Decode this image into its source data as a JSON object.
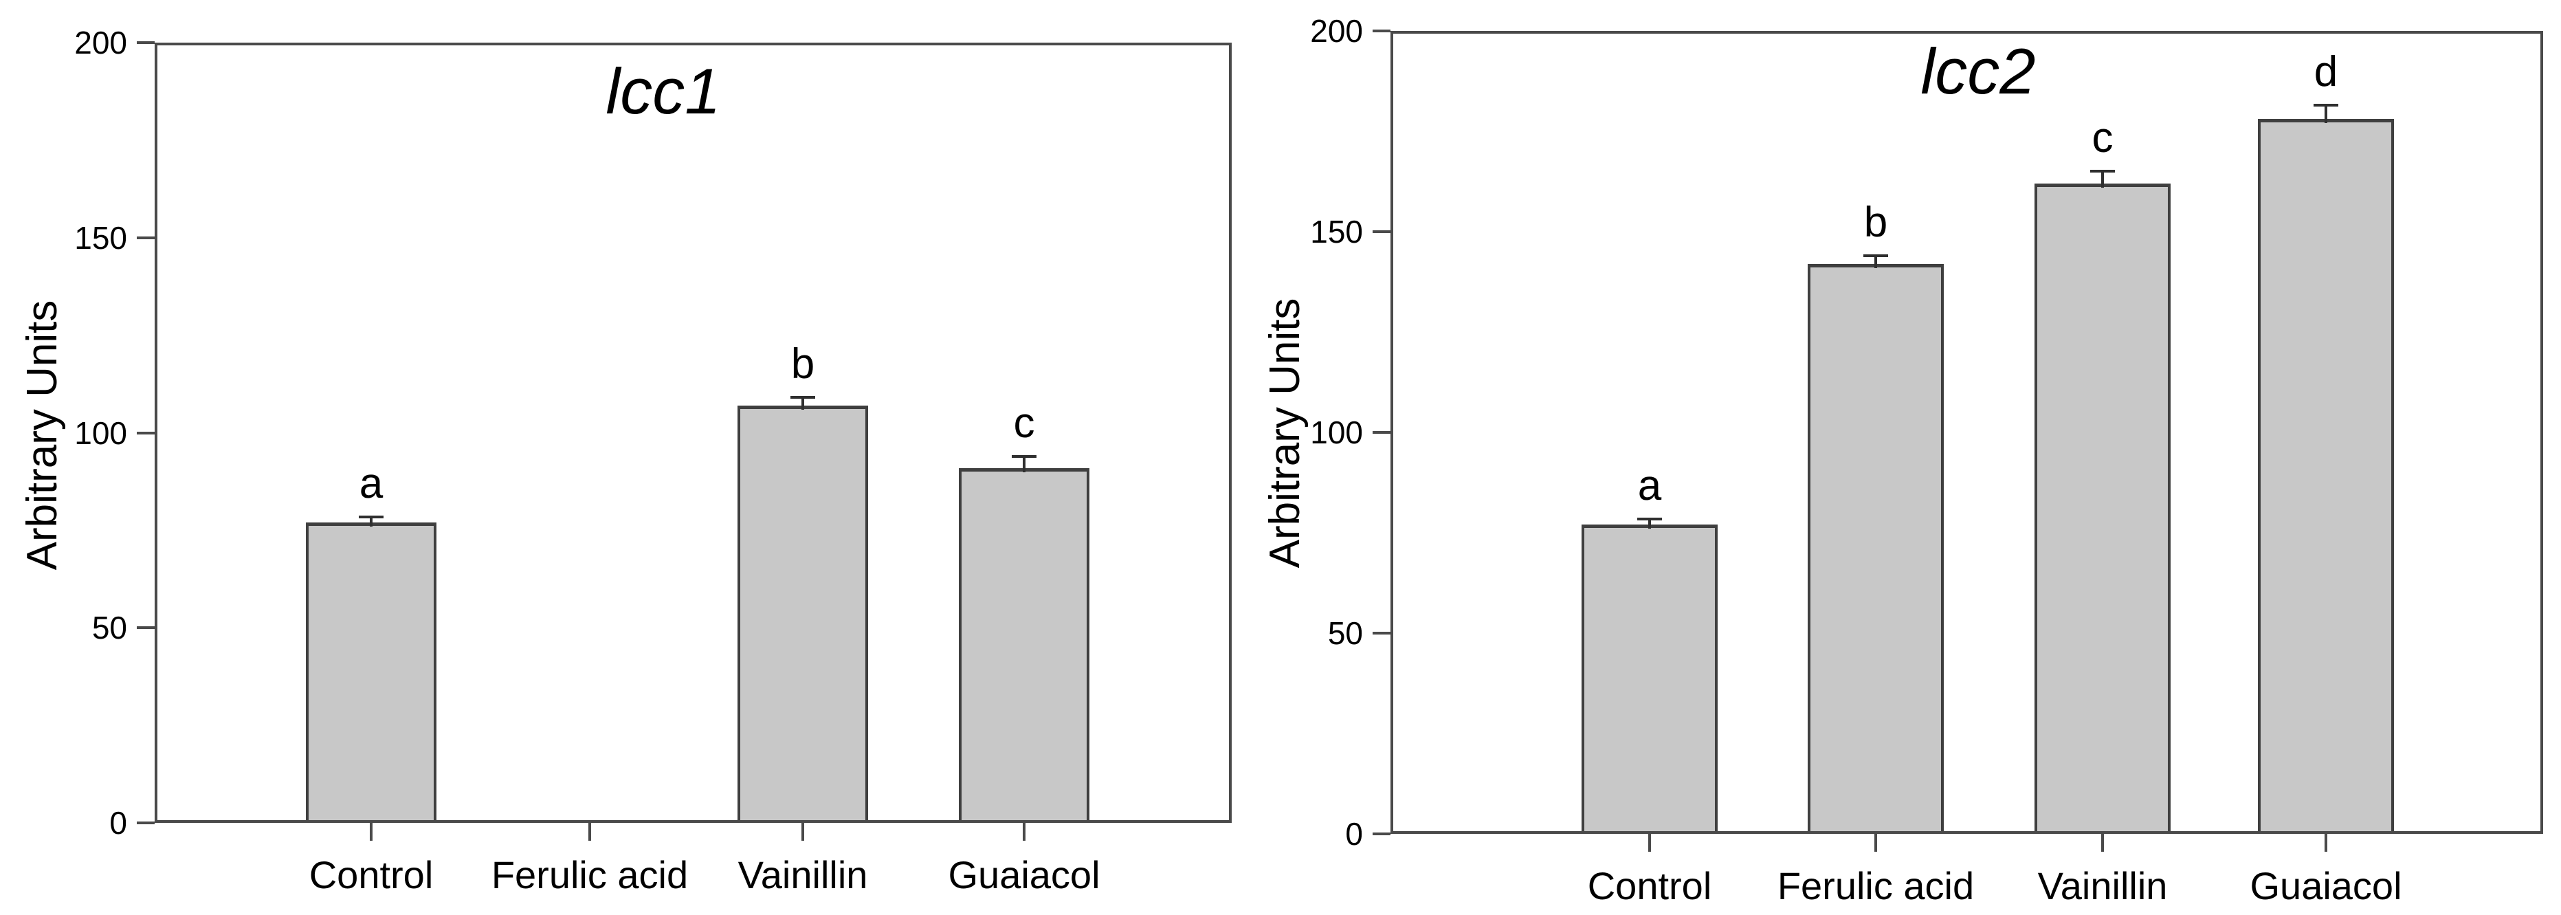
{
  "figure": {
    "background": "#ffffff",
    "text_color": "#000000",
    "axis_color": "#4a4a4a",
    "bar_fill": "#c8c8c8",
    "bar_border": "#3f3f3f",
    "error_color": "#2f2f2f"
  },
  "chart_data": [
    {
      "type": "bar",
      "title": "lcc1",
      "ylabel": "Arbitrary Units",
      "xlabel": "",
      "categories": [
        "Control",
        "Ferulic acid",
        "Vainillin",
        "Guaiacol"
      ],
      "values": [
        77,
        0,
        107,
        91
      ],
      "errors": [
        1.5,
        0,
        2,
        3
      ],
      "sig_letters": [
        "a",
        "",
        "b",
        "c"
      ],
      "yticks": [
        0,
        50,
        100,
        150,
        200
      ],
      "ylim": [
        0,
        200
      ],
      "grid": false,
      "legend": "none"
    },
    {
      "type": "bar",
      "title": "lcc2",
      "ylabel": "Arbitrary Units",
      "xlabel": "",
      "categories": [
        "Control",
        "Ferulic acid",
        "Vainillin",
        "Guaiacol"
      ],
      "values": [
        77,
        142,
        162,
        178
      ],
      "errors": [
        1.5,
        2,
        3,
        3.5
      ],
      "sig_letters": [
        "a",
        "b",
        "c",
        "d"
      ],
      "yticks": [
        0,
        50,
        100,
        150,
        200
      ],
      "ylim": [
        0,
        200
      ],
      "grid": false,
      "legend": "none"
    }
  ]
}
